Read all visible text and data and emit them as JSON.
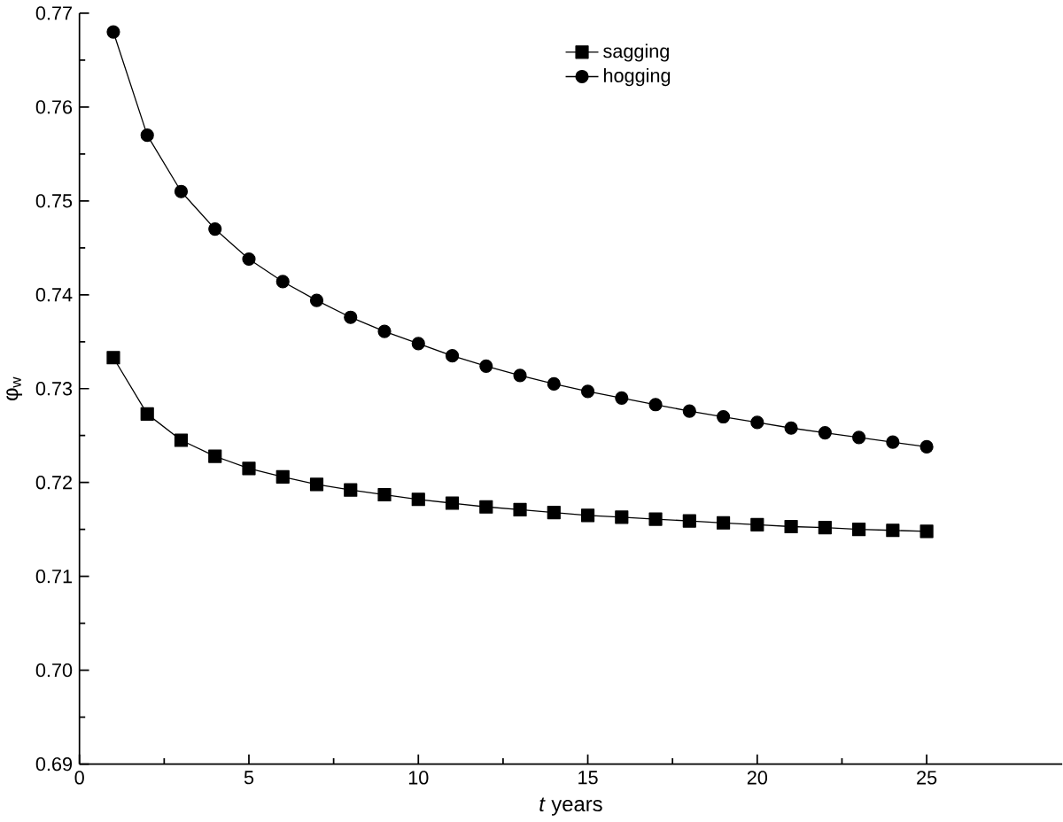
{
  "chart_data": {
    "type": "line",
    "xlabel": "*t* years",
    "ylabel": "φ$_{w}$",
    "x": [
      1,
      2,
      3,
      4,
      5,
      6,
      7,
      8,
      9,
      10,
      11,
      12,
      13,
      14,
      15,
      16,
      17,
      18,
      19,
      20,
      21,
      22,
      23,
      24,
      25
    ],
    "series": [
      {
        "name": "sagging",
        "color": "#000000",
        "marker": "square",
        "values": [
          0.7333,
          0.7273,
          0.7245,
          0.7228,
          0.7215,
          0.7206,
          0.7198,
          0.7192,
          0.7187,
          0.7182,
          0.7178,
          0.7174,
          0.7171,
          0.7168,
          0.7165,
          0.7163,
          0.7161,
          0.7159,
          0.7157,
          0.7155,
          0.7153,
          0.7152,
          0.715,
          0.7149,
          0.7148
        ]
      },
      {
        "name": "hogging",
        "color": "#000000",
        "marker": "circle",
        "values": [
          0.768,
          0.757,
          0.751,
          0.747,
          0.7438,
          0.7414,
          0.7394,
          0.7376,
          0.7361,
          0.7348,
          0.7335,
          0.7324,
          0.7314,
          0.7305,
          0.7297,
          0.729,
          0.7283,
          0.7276,
          0.727,
          0.7264,
          0.7258,
          0.7253,
          0.7248,
          0.7243,
          0.7238
        ]
      }
    ],
    "xlim": [
      0,
      29
    ],
    "ylim": [
      0.69,
      0.77
    ],
    "xticks": [
      0,
      5,
      10,
      15,
      20,
      25
    ],
    "yticks": [
      {
        "value": 0.69,
        "label": "0.69"
      },
      {
        "value": 0.7,
        "label": "0.70"
      },
      {
        "value": 0.71,
        "label": "0.71"
      },
      {
        "value": 0.72,
        "label": "0.72"
      },
      {
        "value": 0.73,
        "label": "0.73"
      },
      {
        "value": 0.74,
        "label": "0.74"
      },
      {
        "value": 0.75,
        "label": "0.75"
      },
      {
        "value": 0.76,
        "label": "0.76"
      },
      {
        "value": 0.77,
        "label": "0.77"
      }
    ],
    "legend": "top",
    "grid": false,
    "line_style": "solid"
  }
}
